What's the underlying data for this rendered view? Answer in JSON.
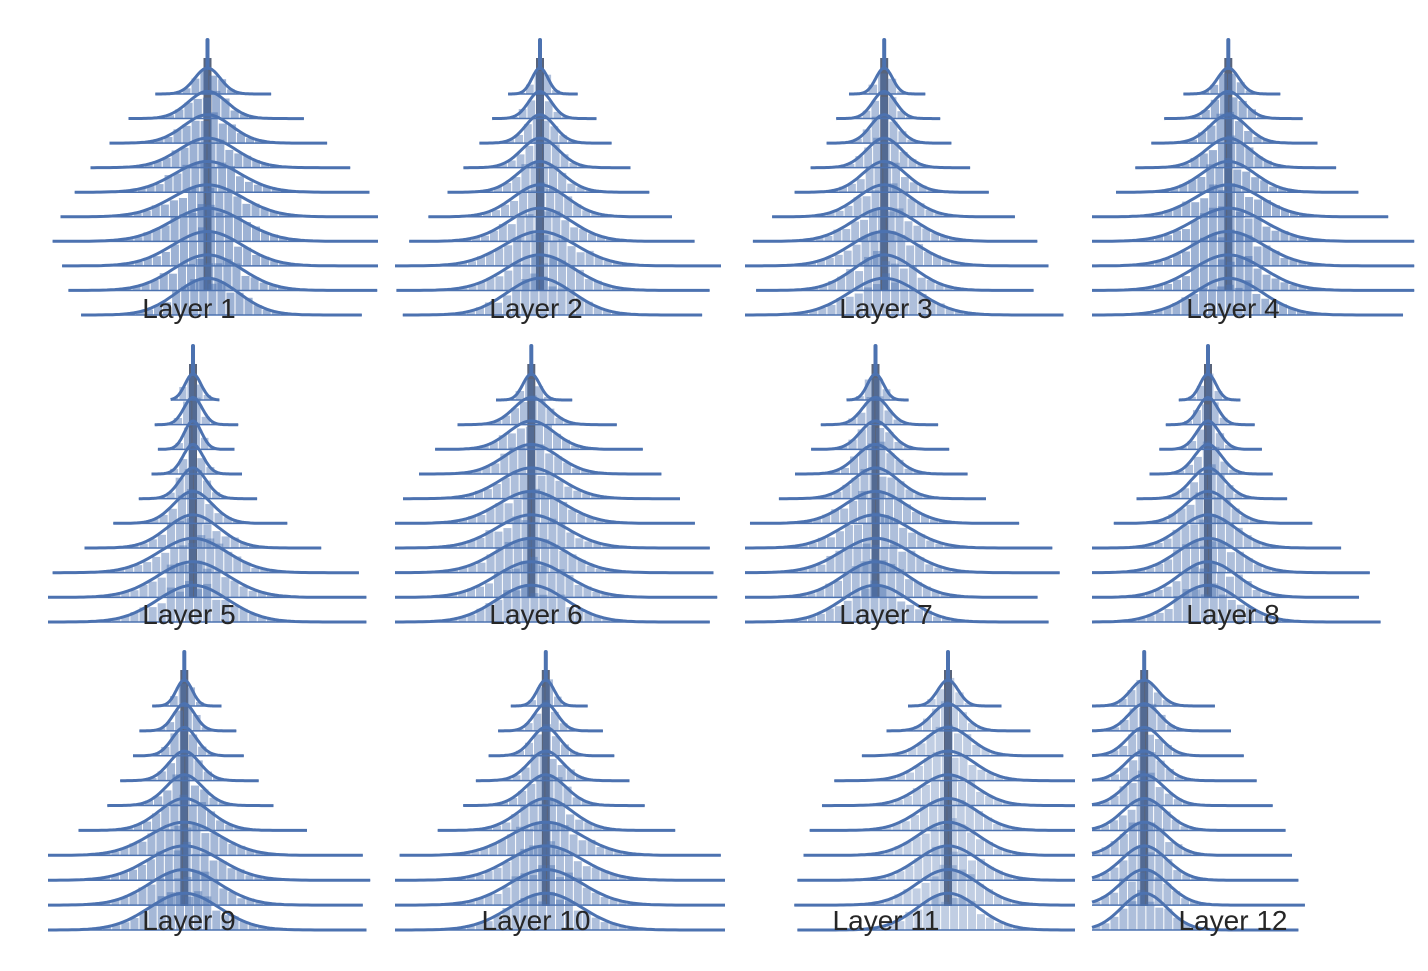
{
  "chart_data": {
    "type": "ridgeline",
    "grid": false,
    "colors": {
      "kde_line": "#4c72b0",
      "hist_fill": "#4c72b0",
      "center_bar": "#22304f"
    },
    "panels": [
      {
        "label": "Layer 1",
        "rows": 10,
        "spread": [
          0.33,
          0.5,
          0.62,
          0.74,
          0.84,
          0.93,
          0.98,
          0.92,
          0.88,
          0.8
        ],
        "peak_x": 0.55,
        "hist_alpha": 0.55
      },
      {
        "label": "Layer 2",
        "rows": 10,
        "spread": [
          0.2,
          0.3,
          0.38,
          0.48,
          0.58,
          0.7,
          0.82,
          0.96,
          0.9,
          0.86
        ],
        "peak_x": 0.5,
        "hist_alpha": 0.45
      },
      {
        "label": "Layer 3",
        "rows": 10,
        "spread": [
          0.22,
          0.3,
          0.36,
          0.46,
          0.56,
          0.7,
          0.82,
          0.88,
          0.8,
          0.96
        ],
        "peak_x": 0.48,
        "hist_alpha": 0.45
      },
      {
        "label": "Layer 4",
        "rows": 10,
        "spread": [
          0.28,
          0.4,
          0.48,
          0.58,
          0.7,
          0.86,
          1.0,
          1.0,
          1.0,
          0.94
        ],
        "peak_x": 0.47,
        "hist_alpha": 0.55
      },
      {
        "label": "Layer 5",
        "rows": 10,
        "spread": [
          0.14,
          0.24,
          0.22,
          0.26,
          0.34,
          0.5,
          0.68,
          0.88,
          0.92,
          0.92
        ],
        "peak_x": 0.5,
        "hist_alpha": 0.45
      },
      {
        "label": "Layer 6",
        "rows": 10,
        "spread": [
          0.22,
          0.46,
          0.6,
          0.7,
          0.8,
          0.88,
          0.96,
          0.98,
          1.0,
          0.96
        ],
        "peak_x": 0.47,
        "hist_alpha": 0.45
      },
      {
        "label": "Layer 7",
        "rows": 10,
        "spread": [
          0.18,
          0.34,
          0.4,
          0.5,
          0.6,
          0.78,
          0.96,
          1.0,
          0.88,
          0.94
        ],
        "peak_x": 0.45,
        "hist_alpha": 0.45
      },
      {
        "label": "Layer 8",
        "rows": 10,
        "spread": [
          0.18,
          0.26,
          0.3,
          0.36,
          0.44,
          0.58,
          0.74,
          0.9,
          0.84,
          0.96
        ],
        "peak_x": 0.4,
        "hist_alpha": 0.45
      },
      {
        "label": "Layer 9",
        "rows": 10,
        "spread": [
          0.2,
          0.28,
          0.32,
          0.4,
          0.48,
          0.66,
          0.96,
          1.0,
          0.96,
          0.98
        ],
        "peak_x": 0.47,
        "hist_alpha": 0.5
      },
      {
        "label": "Layer 10",
        "rows": 10,
        "spread": [
          0.22,
          0.3,
          0.36,
          0.44,
          0.52,
          0.68,
          0.92,
          0.96,
          0.96,
          0.96
        ],
        "peak_x": 0.52,
        "hist_alpha": 0.45
      },
      {
        "label": "Layer 11",
        "rows": 10,
        "spread": [
          0.26,
          0.4,
          0.56,
          0.74,
          0.82,
          0.9,
          0.94,
          0.98,
          1.0,
          0.98
        ],
        "peak_x": 0.7,
        "hist_alpha": 0.35
      },
      {
        "label": "Layer 12",
        "rows": 10,
        "spread": [
          0.44,
          0.54,
          0.62,
          0.7,
          0.8,
          0.88,
          0.92,
          0.96,
          1.0,
          0.96
        ],
        "peak_x": 0.18,
        "hist_alpha": 0.45
      }
    ]
  }
}
